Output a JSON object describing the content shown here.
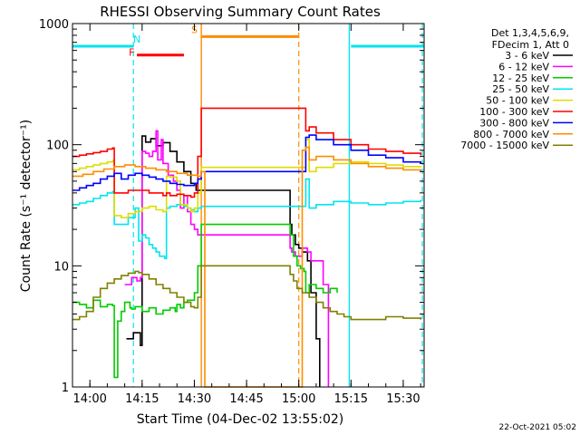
{
  "chart_data": {
    "type": "line",
    "title": "RHESSI Observing Summary Count Rates",
    "xlabel": "Start Time (04-Dec-02 13:55:02)",
    "ylabel": "Count Rate (s⁻¹ detector⁻¹)",
    "x_units": "minutes after 13:55:02",
    "xlim": [
      0,
      101
    ],
    "ylim": [
      1,
      1000
    ],
    "yscale": "log",
    "x_ticks": [
      {
        "label": "14:00",
        "value": 5
      },
      {
        "label": "14:15",
        "value": 20
      },
      {
        "label": "14:30",
        "value": 35
      },
      {
        "label": "14:45",
        "value": 50
      },
      {
        "label": "15:00",
        "value": 65
      },
      {
        "label": "15:15",
        "value": 80
      },
      {
        "label": "15:30",
        "value": 95
      }
    ],
    "y_ticks": [
      {
        "label": "1",
        "value": 1
      },
      {
        "label": "10",
        "value": 10
      },
      {
        "label": "100",
        "value": 100
      },
      {
        "label": "1000",
        "value": 1000
      }
    ],
    "legend_header": [
      "Det 1,3,4,5,6,9,",
      "FDecim 1, Att 0"
    ],
    "legend_position": "right",
    "timestamp": "22-Oct-2021 05:02",
    "series": [
      {
        "name": "3 - 6 keV",
        "color": "#000000",
        "x": [
          15.5,
          17.5,
          19.5,
          20.0,
          21.0,
          22.5,
          24,
          26,
          28,
          30,
          32,
          34,
          35.5,
          62.5,
          63,
          64,
          65,
          66,
          67.5,
          68.5,
          70,
          71
        ],
        "y": [
          2.5,
          2.8,
          2.2,
          118,
          105,
          112,
          98,
          104,
          88,
          72,
          60,
          48,
          42,
          22,
          18,
          15,
          14,
          13,
          11,
          6,
          2.5,
          1
        ]
      },
      {
        "name": "6 - 12 keV",
        "color": "#ff00ff",
        "x": [
          15,
          17,
          18.5,
          19.5,
          20,
          21,
          22,
          23,
          24,
          24.5,
          25.5,
          26,
          27.5,
          29,
          30,
          31,
          32,
          33,
          34,
          35,
          36,
          62.5,
          63,
          64,
          65,
          66,
          67.5,
          68.5,
          72,
          73.5
        ],
        "y": [
          7,
          8,
          7.5,
          8,
          88,
          85,
          80,
          88,
          130,
          75,
          110,
          70,
          56,
          50,
          42,
          30,
          38,
          28,
          22,
          20,
          18,
          14,
          13,
          12,
          12,
          14,
          13,
          11,
          7,
          1
        ]
      },
      {
        "name": "12 - 25 keV",
        "color": "#00cc00",
        "x": [
          0,
          2,
          4,
          6,
          8,
          10,
          11.5,
          12,
          13,
          14,
          15,
          16.5,
          17,
          18,
          20,
          22,
          24,
          26,
          28,
          29.5,
          30,
          31,
          32,
          33,
          34,
          35,
          36,
          37,
          62.5,
          63.5,
          64.5,
          65.5,
          66.5,
          67,
          68,
          70,
          72,
          74,
          76
        ],
        "y": [
          5,
          4.8,
          4.5,
          5.2,
          4.6,
          4.8,
          4.7,
          1.2,
          3.5,
          4.2,
          5,
          4.5,
          4.4,
          4.6,
          4.2,
          4.5,
          4.0,
          4.3,
          4.5,
          4.2,
          4.8,
          4.5,
          5,
          5.2,
          5.2,
          6,
          10,
          22,
          18,
          12,
          10,
          9.5,
          9,
          6,
          7,
          6.5,
          6,
          6.5,
          6
        ]
      },
      {
        "name": "25 - 50 keV",
        "color": "#00e5ee",
        "x": [
          0,
          2,
          4,
          6,
          8,
          10,
          11.5,
          12,
          14,
          16,
          18,
          19,
          20,
          21,
          22,
          23,
          24,
          25,
          26.5,
          27,
          28,
          30,
          32,
          33,
          34,
          35,
          36,
          37,
          67,
          68,
          70,
          75,
          80,
          85,
          90,
          95,
          100
        ],
        "y": [
          32,
          33,
          34,
          36,
          38,
          40,
          41,
          22,
          22,
          25,
          30,
          16,
          18,
          17,
          15,
          14,
          13,
          12,
          11.5,
          30,
          31,
          32,
          31,
          30,
          29,
          28,
          30,
          31,
          52,
          30,
          32,
          34,
          33,
          32,
          33,
          34,
          35
        ]
      },
      {
        "name": "50 - 100 keV",
        "color": "#dddd00",
        "x": [
          0,
          2,
          4,
          6,
          8,
          10,
          11.5,
          12,
          14,
          16,
          18,
          20,
          22,
          24,
          26,
          27,
          28,
          30,
          31,
          32,
          33,
          34,
          35,
          36,
          37,
          67,
          68,
          70,
          75,
          80,
          85,
          90,
          95,
          100
        ],
        "y": [
          62,
          64,
          66,
          68,
          70,
          72,
          74,
          26,
          25,
          27,
          28,
          30,
          31,
          29,
          28,
          55,
          54,
          50,
          32,
          32,
          30,
          28,
          30,
          40,
          65,
          110,
          60,
          65,
          70,
          72,
          70,
          68,
          66,
          65
        ]
      },
      {
        "name": "100 - 300 keV",
        "color": "#ff0000",
        "x": [
          0,
          2,
          4,
          6,
          8,
          10,
          11.5,
          12,
          14,
          16,
          18,
          20,
          22,
          24,
          26,
          27,
          28,
          30,
          32,
          34,
          35,
          36,
          37,
          67,
          68,
          70,
          75,
          80,
          85,
          90,
          95,
          100
        ],
        "y": [
          80,
          82,
          84,
          86,
          88,
          92,
          94,
          40,
          40,
          42,
          42,
          42,
          40,
          40,
          38,
          40,
          38,
          39,
          38,
          37,
          40,
          80,
          200,
          130,
          140,
          125,
          110,
          100,
          92,
          88,
          85,
          82
        ]
      },
      {
        "name": "300 - 800 keV",
        "color": "#0000ff",
        "x": [
          0,
          2,
          4,
          6,
          8,
          10,
          12,
          14,
          16,
          18,
          20,
          22,
          24,
          26,
          28,
          30,
          32,
          34,
          35,
          36,
          37,
          67,
          68,
          70,
          75,
          80,
          85,
          90,
          95,
          100
        ],
        "y": [
          42,
          44,
          46,
          48,
          52,
          55,
          58,
          52,
          56,
          58,
          56,
          54,
          52,
          50,
          48,
          47,
          46,
          46,
          48,
          52,
          60,
          115,
          120,
          110,
          100,
          90,
          82,
          78,
          72,
          70
        ]
      },
      {
        "name": "800 - 7000 keV",
        "color": "#ff8c00",
        "x": [
          0,
          3,
          6,
          9,
          12,
          15,
          18,
          21,
          24,
          27,
          30,
          33,
          36,
          37,
          38,
          65,
          66,
          67,
          68,
          70,
          75,
          80,
          85,
          90,
          95,
          100
        ],
        "y": [
          55,
          57,
          60,
          63,
          66,
          68,
          66,
          64,
          62,
          60,
          58,
          56,
          55,
          60,
          1,
          1,
          90,
          95,
          75,
          80,
          75,
          70,
          66,
          64,
          62,
          60
        ]
      },
      {
        "name": "7000 - 15000 keV",
        "color": "#808000",
        "x": [
          0,
          2,
          4,
          6,
          8,
          10,
          12,
          14,
          16,
          18,
          19,
          20,
          22,
          24,
          26,
          28,
          30,
          32,
          34,
          35,
          36,
          37,
          62.5,
          63.5,
          64.5,
          66,
          68,
          70,
          72,
          74,
          76,
          78,
          80,
          85,
          90,
          95,
          100
        ],
        "y": [
          3.6,
          3.8,
          4.2,
          5.5,
          6.5,
          7.2,
          7.8,
          8.3,
          8.7,
          9.0,
          8.8,
          8.5,
          7.8,
          7.0,
          6.5,
          6.0,
          5.5,
          5.0,
          4.6,
          4.5,
          5.5,
          10,
          8.5,
          7.5,
          6.5,
          6,
          5.5,
          5.0,
          4.5,
          4.2,
          4.0,
          3.8,
          3.6,
          3.6,
          3.8,
          3.7,
          3.6
        ]
      }
    ],
    "annotations": [
      {
        "label": "N",
        "color": "#00e5ee",
        "style": "solid",
        "level": 650,
        "x_segments": [
          [
            0,
            17.5
          ],
          [
            80,
            101
          ]
        ],
        "dashed_markers": [
          17.5,
          100.5
        ],
        "solid_markers": [
          79.5
        ]
      },
      {
        "label": "F",
        "color": "#ff0000",
        "style": "solid",
        "level": 550,
        "x_segments": [
          [
            18.5,
            32
          ]
        ]
      },
      {
        "label": "S",
        "color": "#ff8c00",
        "style": "solid",
        "level": 780,
        "x_segments": [
          [
            37,
            65
          ]
        ],
        "solid_markers": [
          37
        ],
        "dashed_markers": [
          65
        ]
      }
    ]
  }
}
